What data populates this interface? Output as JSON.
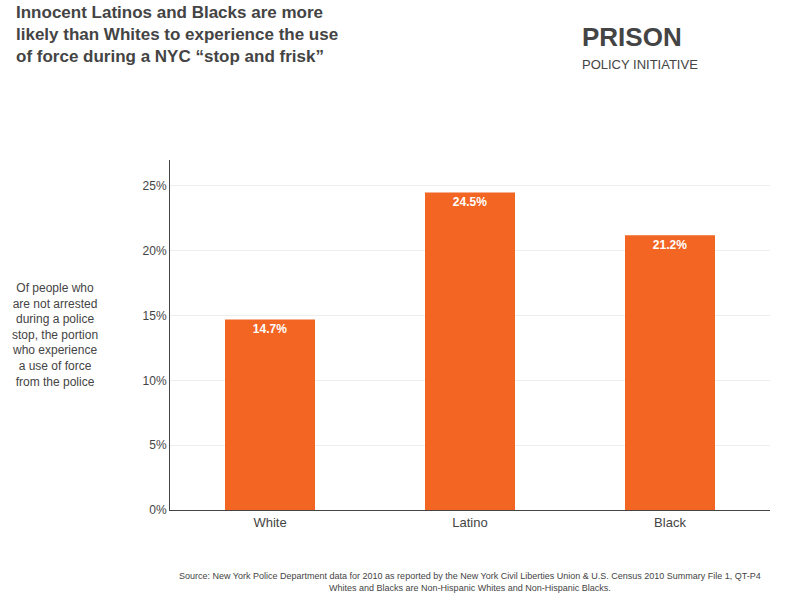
{
  "chart_data": {
    "type": "bar",
    "title": "Innocent Latinos and Blacks are more\nlikely than Whites to experience the use\nof force during a NYC “stop and frisk”",
    "ylabel": "Of people who\nare not arrested\nduring a police\nstop, the portion\nwho experience\na use of force\nfrom the police",
    "categories": [
      "White",
      "Latino",
      "Black"
    ],
    "values": [
      14.7,
      24.5,
      21.2
    ],
    "value_labels": [
      "14.7%",
      "24.5%",
      "21.2%"
    ],
    "data_labels": true,
    "color": "#F26522",
    "ylim": [
      0,
      27
    ],
    "yticks": [
      {
        "value": 0,
        "label": "0%"
      },
      {
        "value": 5,
        "label": "5%"
      },
      {
        "value": 10,
        "label": "10%"
      },
      {
        "value": 15,
        "label": "15%"
      },
      {
        "value": 20,
        "label": "20%"
      },
      {
        "value": 25,
        "label": "25%"
      }
    ],
    "grid": true,
    "annotations": [
      "PRISON",
      "POLICY INITIATIVE",
      "Source: New York Police Department data for 2010 as reported by the New York Civil Liberties Union & U.S. Census 2010 Summary File 1, QT-P4\nWhites and Blacks are Non-Hispanic Whites and Non-Hispanic Blacks."
    ]
  }
}
